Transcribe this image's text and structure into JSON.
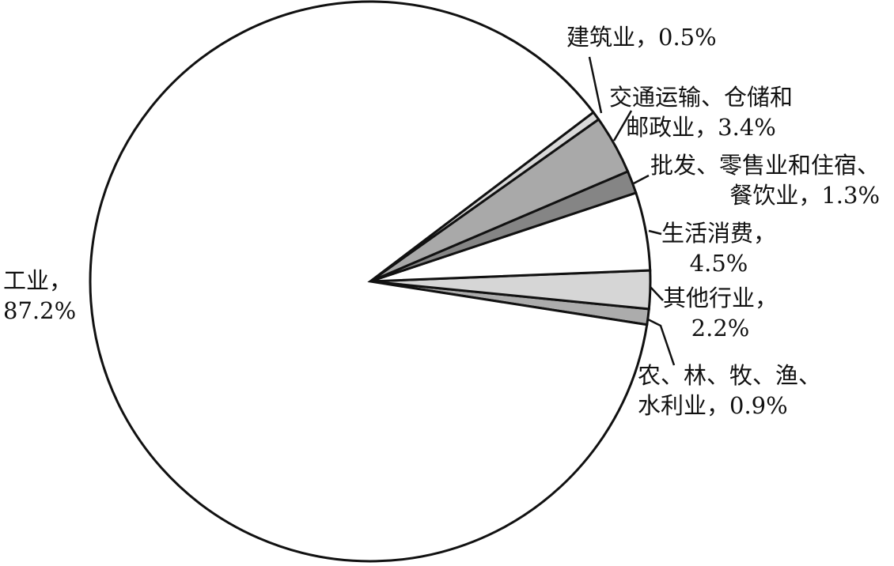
{
  "chart_data": {
    "type": "pie",
    "title": "",
    "slices": [
      {
        "label_lines": [
          "农、林、牧、渔、",
          "水利业，0.9%"
        ],
        "category": "农、林、牧、渔、水利业",
        "value": 0.9,
        "color": "#acacac"
      },
      {
        "label_lines": [
          "其他行业，",
          "2.2%"
        ],
        "category": "其他行业",
        "value": 2.2,
        "color": "#d6d6d6"
      },
      {
        "label_lines": [
          "生活消费，",
          "4.5%"
        ],
        "category": "生活消费",
        "value": 4.5,
        "color": "#ffffff"
      },
      {
        "label_lines": [
          "批发、零售业和住宿、",
          "餐饮业，1.3%"
        ],
        "category": "批发、零售业和住宿、餐饮业",
        "value": 1.3,
        "color": "#858585"
      },
      {
        "label_lines": [
          "交通运输、仓储和",
          "邮政业，3.4%"
        ],
        "category": "交通运输、仓储和邮政业",
        "value": 3.4,
        "color": "#a9a9a9"
      },
      {
        "label_lines": [
          "建筑业，0.5%"
        ],
        "category": "建筑业",
        "value": 0.5,
        "color": "#d9d9d9"
      },
      {
        "label_lines": [
          "工业，",
          "87.2%"
        ],
        "category": "工业",
        "value": 87.2,
        "color": "#ffffff"
      }
    ],
    "direction": "counterclockwise",
    "legend": "none"
  }
}
